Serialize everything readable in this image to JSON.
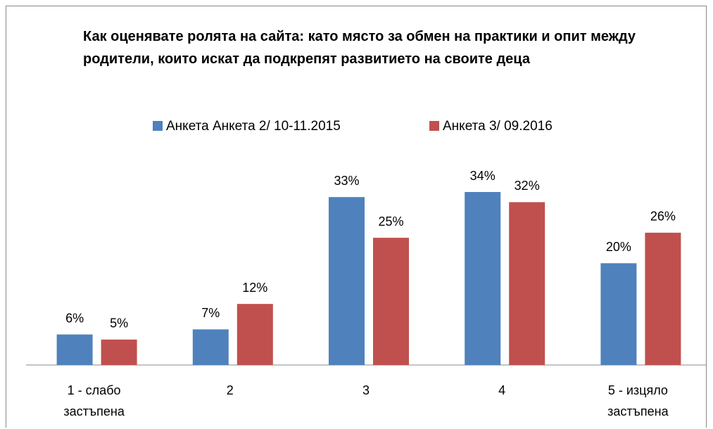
{
  "chart_data": {
    "type": "bar",
    "title": "Как оценявате ролята на сайта: като място за обмен на практики и опит между родители, които искат да подкрепят развитието на своите деца",
    "categories": [
      "1 - слабо застъпена",
      "2",
      "3",
      "4",
      "5 - изцяло застъпена"
    ],
    "series": [
      {
        "name": "Анкета Анкета 2/ 10-11.2015",
        "color": "#4f81bd",
        "values": [
          6,
          7,
          33,
          34,
          20
        ],
        "value_labels": [
          "6%",
          "7%",
          "33%",
          "34%",
          "20%"
        ]
      },
      {
        "name": "Анкета 3/ 09.2016",
        "color": "#c0504d",
        "values": [
          5,
          12,
          25,
          32,
          26
        ],
        "value_labels": [
          "5%",
          "12%",
          "25%",
          "32%",
          "26%"
        ]
      }
    ],
    "legend": "top"
  }
}
